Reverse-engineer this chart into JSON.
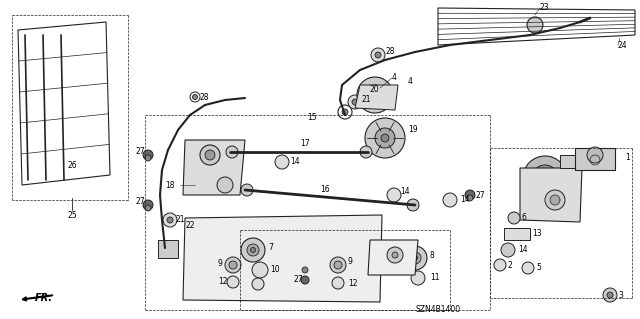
{
  "bg_color": "#ffffff",
  "fig_width": 6.4,
  "fig_height": 3.19,
  "dpi": 100,
  "diagram_code": "SZN4B1400",
  "lc": "#222222",
  "tc": "#000000",
  "lfs": 5.5
}
